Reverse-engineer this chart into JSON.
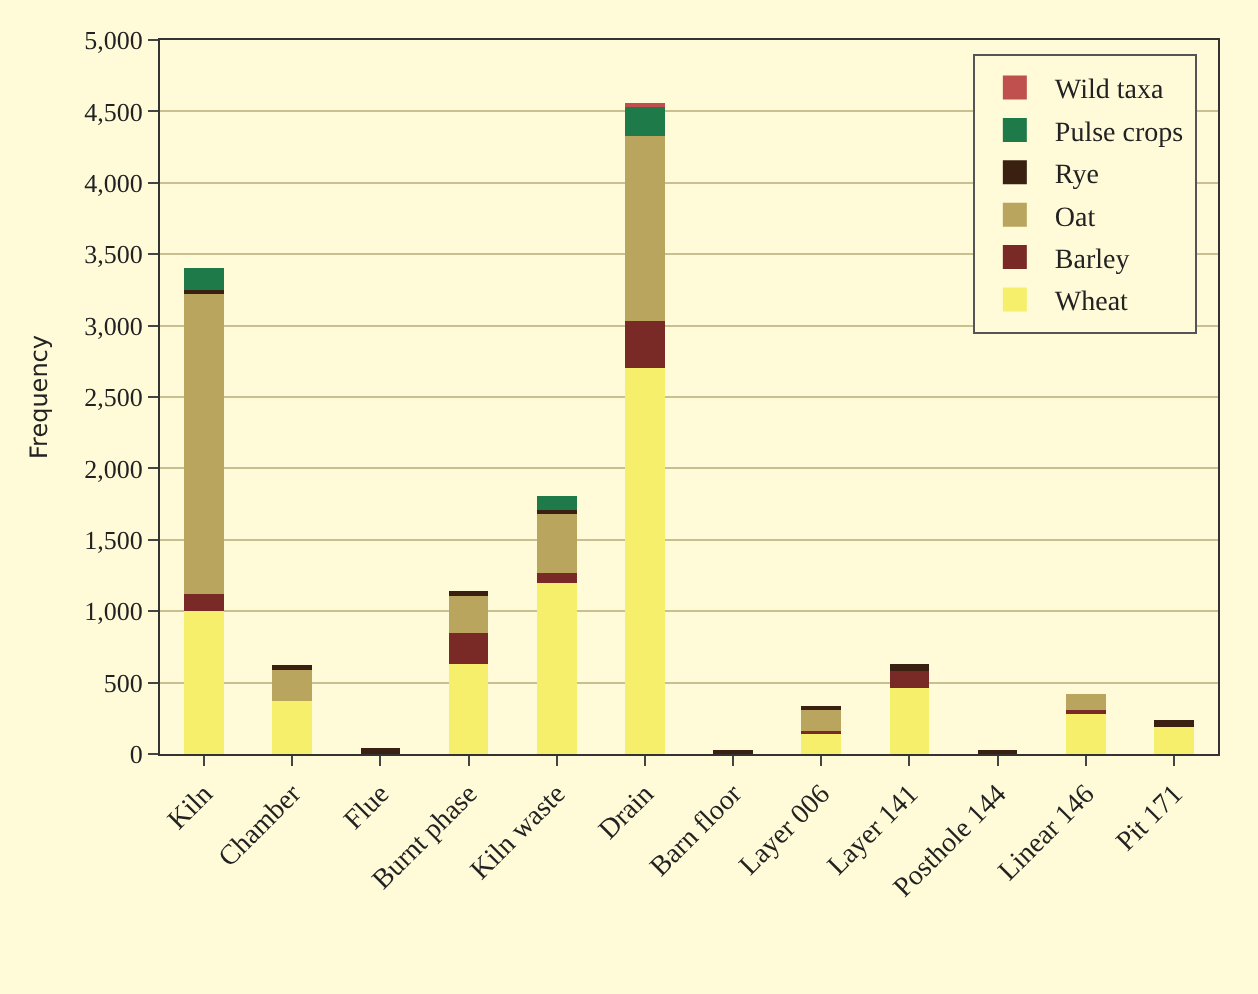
{
  "chart_data": {
    "type": "bar",
    "stacked": true,
    "ylabel": "Frequency",
    "categories": [
      "Kiln",
      "Chamber",
      "Flue",
      "Burnt phase",
      "Kiln waste",
      "Drain",
      "Barn floor",
      "Layer 006",
      "Layer 141",
      "Posthole 144",
      "Linear 146",
      "Pit 171"
    ],
    "series": [
      {
        "name": "Wheat",
        "color": "#f6ef6c",
        "values": [
          1000,
          370,
          null,
          630,
          1200,
          2700,
          null,
          140,
          460,
          null,
          290,
          190
        ]
      },
      {
        "name": "Barley",
        "color": "#7a2a26",
        "values": [
          120,
          null,
          null,
          220,
          70,
          330,
          null,
          20,
          120,
          null,
          20,
          null
        ]
      },
      {
        "name": "Oat",
        "color": "#b9a55e",
        "values": [
          2100,
          230,
          null,
          270,
          420,
          1300,
          null,
          150,
          null,
          null,
          110,
          null
        ]
      },
      {
        "name": "Rye",
        "color": "#3a2010",
        "values": [
          30,
          20,
          40,
          20,
          20,
          null,
          30,
          20,
          50,
          20,
          null,
          50
        ]
      },
      {
        "name": "Pulse crops",
        "color": "#1f7a4a",
        "values": [
          150,
          null,
          null,
          null,
          100,
          200,
          null,
          null,
          null,
          null,
          null,
          null
        ]
      },
      {
        "name": "Wild taxa",
        "color": "#c0504d",
        "values": [
          null,
          null,
          null,
          null,
          null,
          30,
          null,
          null,
          null,
          null,
          null,
          null
        ]
      }
    ],
    "ylim": [
      0,
      5000
    ],
    "yticks": [
      {
        "value": 0,
        "label": "0"
      },
      {
        "value": 500,
        "label": "500"
      },
      {
        "value": 1000,
        "label": "1,000"
      },
      {
        "value": 1500,
        "label": "1,500"
      },
      {
        "value": 2000,
        "label": "2,000"
      },
      {
        "value": 2500,
        "label": "2,500"
      },
      {
        "value": 3000,
        "label": "3,000"
      },
      {
        "value": 3500,
        "label": "3,500"
      },
      {
        "value": 4000,
        "label": "4,000"
      },
      {
        "value": 4500,
        "label": "4,500"
      },
      {
        "value": 5000,
        "label": "5,000"
      }
    ],
    "grid": "y",
    "legend": "top right"
  }
}
